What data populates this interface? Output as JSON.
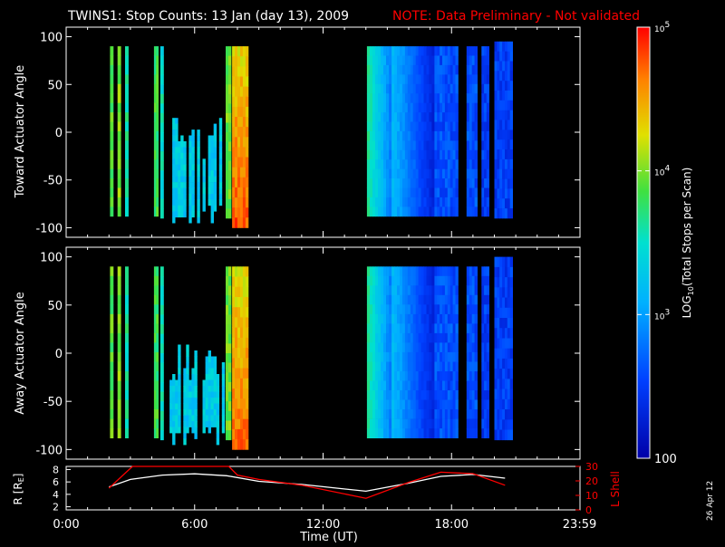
{
  "header": {
    "title": "TWINS1: Stop Counts: 13 Jan (day  13), 2009",
    "note": "NOTE: Data Preliminary - Not validated",
    "note_color": "#ff0000"
  },
  "stamp": "26 Apr 12",
  "colorbar": {
    "label_prefix": "LOG",
    "label_sub": "10",
    "label_suffix": "(Total Stops per Scan)",
    "ticks": [
      {
        "value": 100,
        "text": "100"
      },
      {
        "value": 1000,
        "base": "10",
        "exp": "3"
      },
      {
        "value": 10000,
        "base": "10",
        "exp": "4"
      },
      {
        "value": 100000,
        "base": "10",
        "exp": "5"
      }
    ],
    "range": [
      100,
      100000
    ],
    "scale": "log"
  },
  "chart_data": [
    {
      "type": "heatmap",
      "panel": "toward",
      "ylabel": "Toward Actuator Angle",
      "yticks": [
        100,
        50,
        0,
        -50,
        -100
      ],
      "ylim": [
        -110,
        110
      ],
      "xlim": [
        0,
        24
      ],
      "colorscale": "log10 rainbow (blue-cyan-green-yellow-red)",
      "bands": [
        {
          "t0": 2.05,
          "t1": 2.2,
          "ymin": -88,
          "ymax": 90,
          "level": 3.9
        },
        {
          "t0": 2.4,
          "t1": 2.55,
          "ymin": -88,
          "ymax": 90,
          "level": 4.0
        },
        {
          "t0": 2.75,
          "t1": 2.9,
          "ymin": -88,
          "ymax": 90,
          "level": 3.6
        },
        {
          "t0": 4.1,
          "t1": 4.3,
          "ymin": -88,
          "ymax": 90,
          "level": 3.8
        },
        {
          "t0": 4.4,
          "t1": 4.55,
          "ymin": -90,
          "ymax": 90,
          "level": 3.5
        },
        {
          "t0": 4.7,
          "t1": 7.4,
          "ymin": -95,
          "ymax": 15,
          "level": 3.3
        },
        {
          "t0": 7.45,
          "t1": 7.7,
          "ymin": -90,
          "ymax": 90,
          "level": 3.95
        },
        {
          "t0": 7.75,
          "t1": 8.5,
          "ymin": -100,
          "ymax": 90,
          "level": 4.3
        },
        {
          "t0": 14.05,
          "t1": 15.2,
          "ymin": -88,
          "ymax": 90,
          "level": 3.2
        },
        {
          "t0": 15.2,
          "t1": 17.2,
          "ymin": -88,
          "ymax": 90,
          "level": 2.7
        },
        {
          "t0": 17.2,
          "t1": 18.3,
          "ymin": -88,
          "ymax": 90,
          "level": 2.6
        },
        {
          "t0": 18.7,
          "t1": 19.2,
          "ymin": -88,
          "ymax": 90,
          "level": 2.6
        },
        {
          "t0": 19.4,
          "t1": 19.75,
          "ymin": -88,
          "ymax": 90,
          "level": 2.5
        },
        {
          "t0": 20.0,
          "t1": 20.85,
          "ymin": -90,
          "ymax": 95,
          "level": 2.5
        }
      ]
    },
    {
      "type": "heatmap",
      "panel": "away",
      "ylabel": "Away Actuator Angle",
      "yticks": [
        100,
        50,
        0,
        -50,
        -100
      ],
      "ylim": [
        -110,
        110
      ],
      "xlim": [
        0,
        24
      ],
      "colorscale": "log10 rainbow (blue-cyan-green-yellow-red)",
      "bands": [
        {
          "t0": 2.05,
          "t1": 2.2,
          "ymin": -88,
          "ymax": 90,
          "level": 3.9
        },
        {
          "t0": 2.4,
          "t1": 2.55,
          "ymin": -88,
          "ymax": 90,
          "level": 4.0
        },
        {
          "t0": 2.75,
          "t1": 2.9,
          "ymin": -88,
          "ymax": 90,
          "level": 3.6
        },
        {
          "t0": 4.1,
          "t1": 4.3,
          "ymin": -88,
          "ymax": 90,
          "level": 3.8
        },
        {
          "t0": 4.4,
          "t1": 4.55,
          "ymin": -90,
          "ymax": 90,
          "level": 3.5
        },
        {
          "t0": 4.7,
          "t1": 7.4,
          "ymin": -95,
          "ymax": 15,
          "level": 3.3
        },
        {
          "t0": 7.45,
          "t1": 7.7,
          "ymin": -90,
          "ymax": 90,
          "level": 3.95
        },
        {
          "t0": 7.75,
          "t1": 8.5,
          "ymin": -100,
          "ymax": 90,
          "level": 4.25
        },
        {
          "t0": 14.05,
          "t1": 15.2,
          "ymin": -88,
          "ymax": 90,
          "level": 3.2
        },
        {
          "t0": 15.2,
          "t1": 17.2,
          "ymin": -88,
          "ymax": 90,
          "level": 2.7
        },
        {
          "t0": 17.2,
          "t1": 18.3,
          "ymin": -88,
          "ymax": 90,
          "level": 2.6
        },
        {
          "t0": 18.7,
          "t1": 19.2,
          "ymin": -88,
          "ymax": 90,
          "level": 2.6
        },
        {
          "t0": 19.4,
          "t1": 19.75,
          "ymin": -88,
          "ymax": 90,
          "level": 2.5
        },
        {
          "t0": 20.0,
          "t1": 20.85,
          "ymin": -90,
          "ymax": 100,
          "level": 2.5
        }
      ]
    },
    {
      "type": "line",
      "panel": "orbit",
      "xlabel": "Time (UT)",
      "xticks": [
        "0:00",
        "6:00",
        "12:00",
        "18:00",
        "23:59"
      ],
      "xtick_values": [
        0,
        6,
        12,
        18,
        23.98
      ],
      "xlim": [
        0,
        24
      ],
      "ylabel_left": "R [R",
      "ylabel_left_sub": "E",
      "ylabel_left_close": "]",
      "yticks_left": [
        8,
        6,
        4,
        2
      ],
      "ylim_left": [
        1.5,
        8.5
      ],
      "ylabel_right": "L Shell",
      "yticks_right": [
        30,
        20,
        10,
        0
      ],
      "ylim_right": [
        0,
        30
      ],
      "series": [
        {
          "axis": "left",
          "color": "#ffffff",
          "x": [
            2.0,
            3.0,
            4.5,
            6.0,
            7.5,
            9.0,
            11.0,
            14.0,
            16.0,
            17.5,
            19.0,
            20.5
          ],
          "y": [
            5.2,
            6.4,
            7.1,
            7.3,
            7.0,
            6.1,
            5.6,
            4.5,
            5.8,
            6.9,
            7.2,
            6.6
          ]
        },
        {
          "axis": "right",
          "color": "#ff0000",
          "x": [
            2.0,
            3.1,
            7.6,
            8.0,
            9.0,
            11.0,
            14.0,
            16.0,
            17.5,
            19.0,
            20.5
          ],
          "y": [
            15,
            30,
            30,
            24,
            21,
            17,
            8,
            19,
            26,
            25,
            17
          ]
        }
      ]
    }
  ]
}
